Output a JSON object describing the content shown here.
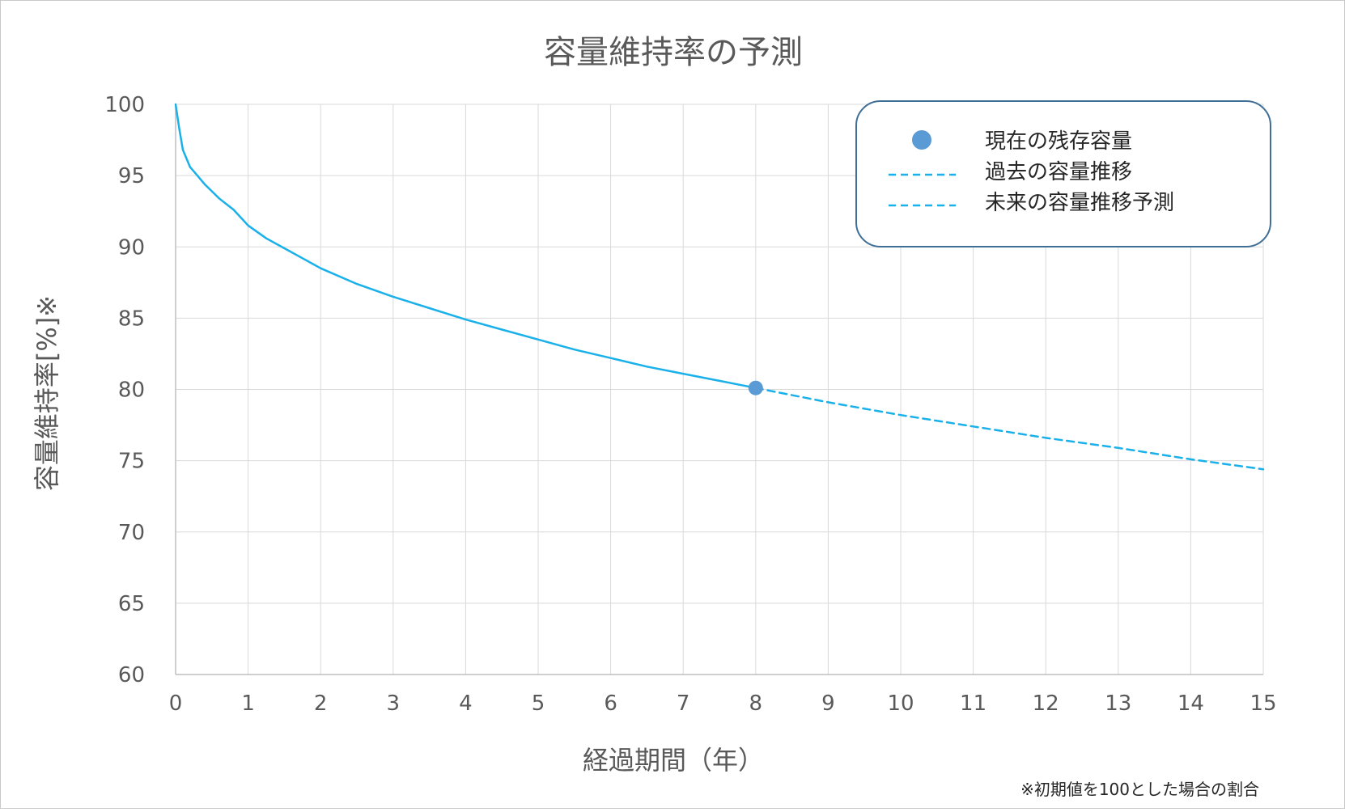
{
  "chart_data": {
    "type": "line",
    "title": "容量維持率の予測",
    "xlabel": "経過期間（年）",
    "ylabel": "容量維持率[%]※",
    "footnote": "※初期値を100とした場合の割合",
    "xlim": [
      0,
      15
    ],
    "ylim": [
      60,
      100
    ],
    "xticks": [
      "0",
      "1",
      "2",
      "3",
      "4",
      "5",
      "6",
      "7",
      "8",
      "9",
      "10",
      "11",
      "12",
      "13",
      "14",
      "15"
    ],
    "yticks": [
      "100",
      "95",
      "90",
      "85",
      "80",
      "75",
      "70",
      "65",
      "60"
    ],
    "grid": true,
    "legend_position": "top-right",
    "legend": [
      {
        "label": "現在の残存容量",
        "kind": "marker"
      },
      {
        "label": "過去の容量推移",
        "kind": "dashed-line"
      },
      {
        "label": "未来の容量推移予測",
        "kind": "dashed-line"
      }
    ],
    "series": [
      {
        "name": "過去の容量推移",
        "style": "solid",
        "color": "#1ab0ea",
        "x": [
          0,
          0.05,
          0.1,
          0.2,
          0.3,
          0.4,
          0.5,
          0.6,
          0.8,
          1,
          1.25,
          1.5,
          1.75,
          2,
          2.5,
          3,
          3.5,
          4,
          4.5,
          5,
          5.5,
          6,
          6.5,
          7,
          7.5,
          8
        ],
        "y": [
          100,
          98.3,
          96.8,
          95.6,
          95.0,
          94.4,
          93.9,
          93.4,
          92.6,
          91.5,
          90.6,
          89.9,
          89.2,
          88.5,
          87.4,
          86.5,
          85.7,
          84.9,
          84.2,
          83.5,
          82.8,
          82.2,
          81.6,
          81.1,
          80.6,
          80.1
        ]
      },
      {
        "name": "未来の容量推移予測",
        "style": "dashed",
        "color": "#1ab0ea",
        "x": [
          8,
          9,
          10,
          11,
          12,
          13,
          14,
          15
        ],
        "y": [
          80.1,
          79.1,
          78.2,
          77.4,
          76.6,
          75.9,
          75.1,
          74.4
        ]
      }
    ],
    "current_point": {
      "name": "現在の残存容量",
      "x": 8,
      "y": 80.1,
      "color": "#5b9bd5"
    }
  }
}
